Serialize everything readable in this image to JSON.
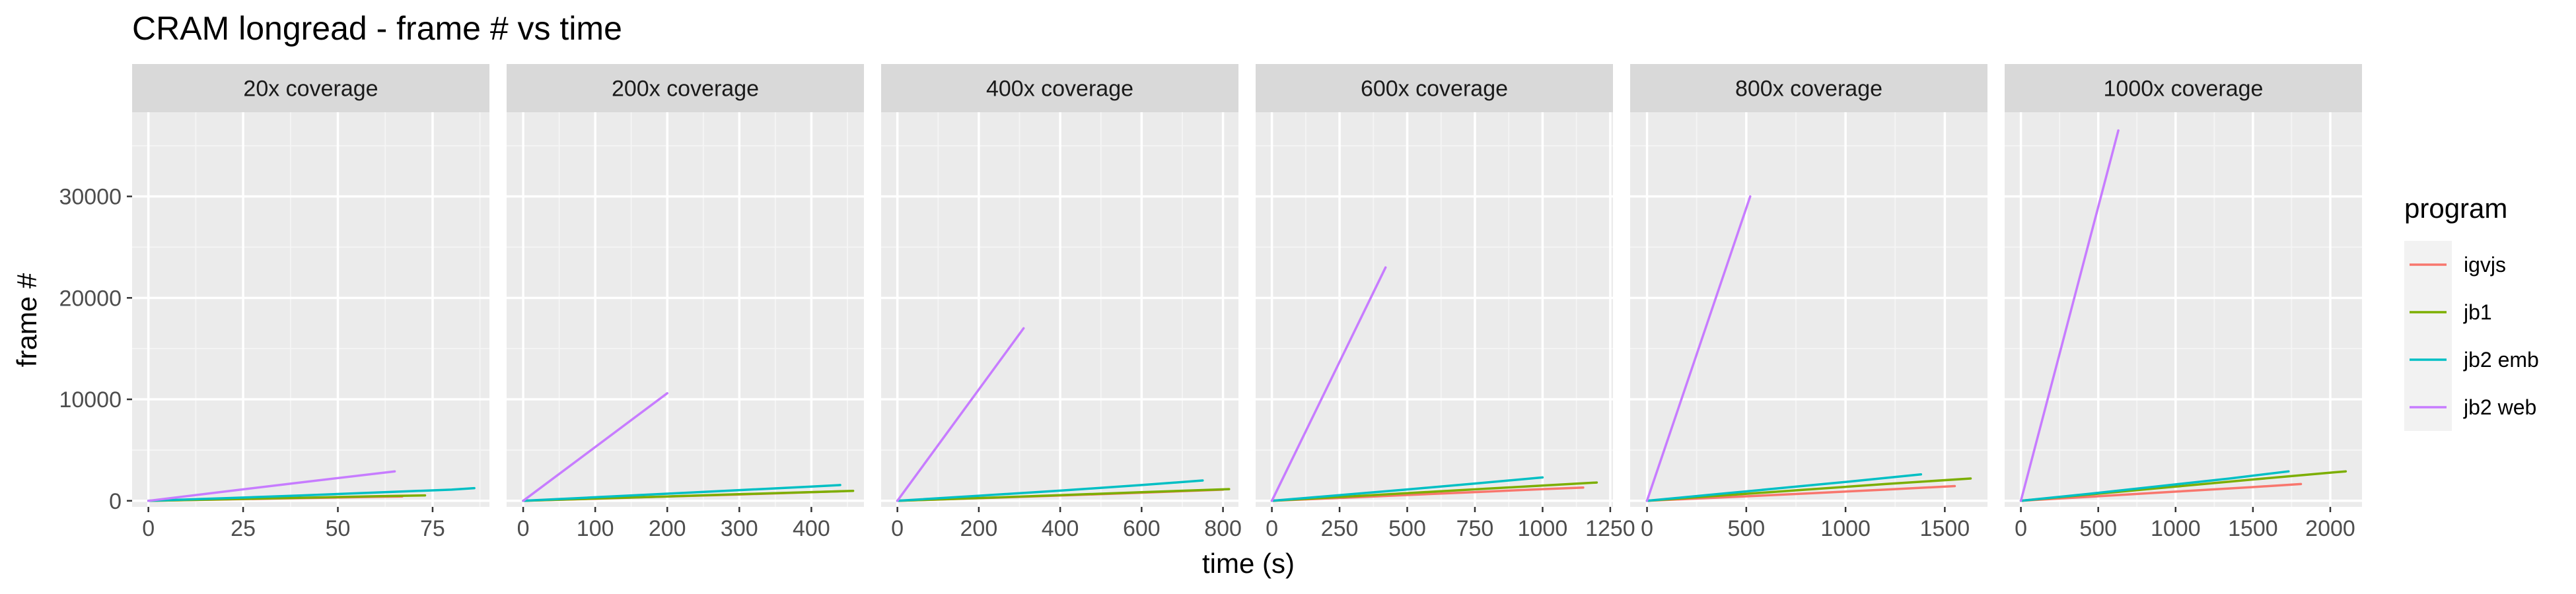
{
  "chart_data": {
    "type": "line",
    "title": "CRAM longread - frame # vs time",
    "xlabel": "time (s)",
    "ylabel": "frame #",
    "grid": true,
    "legend": {
      "title": "program",
      "position": "right",
      "entries": [
        "igvjs",
        "jb1",
        "jb2 emb",
        "jb2 web"
      ]
    },
    "colors": {
      "igvjs": "#F8766D",
      "jb1": "#7CAE00",
      "jb2 emb": "#00BFC4",
      "jb2 web": "#C77CFF"
    },
    "ylim": [
      -600,
      38300
    ],
    "yticks": [
      0,
      10000,
      20000,
      30000
    ],
    "ytick_labels": [
      "0",
      "10000",
      "20000",
      "30000"
    ],
    "panels": [
      {
        "label": "20x coverage",
        "xlim": [
          -4.3,
          90
        ],
        "xticks": [
          0,
          25,
          50,
          75
        ],
        "xtick_labels": [
          "0",
          "25",
          "50",
          "75"
        ],
        "series": [
          {
            "name": "igvjs",
            "x": [
              0,
              20,
              40,
              60,
              67
            ],
            "y": [
              0,
              130,
              260,
              390,
              430
            ]
          },
          {
            "name": "jb1",
            "x": [
              0,
              20,
              40,
              60,
              73
            ],
            "y": [
              0,
              150,
              300,
              450,
              530
            ]
          },
          {
            "name": "jb2 emb",
            "x": [
              0,
              20,
              40,
              60,
              80,
              86
            ],
            "y": [
              0,
              250,
              520,
              820,
              1100,
              1250
            ]
          },
          {
            "name": "jb2 web",
            "x": [
              0,
              20,
              40,
              65
            ],
            "y": [
              0,
              900,
              1800,
              2900
            ]
          }
        ]
      },
      {
        "label": "200x coverage",
        "xlim": [
          -23,
          473
        ],
        "xticks": [
          0,
          100,
          200,
          300,
          400
        ],
        "xtick_labels": [
          "0",
          "100",
          "200",
          "300",
          "400"
        ],
        "series": [
          {
            "name": "igvjs",
            "x": [
              0,
              100,
              200,
              300,
              400,
              445
            ],
            "y": [
              0,
              200,
              420,
              620,
              850,
              950
            ]
          },
          {
            "name": "jb1",
            "x": [
              0,
              100,
              200,
              300,
              400,
              458
            ],
            "y": [
              0,
              220,
              430,
              650,
              860,
              980
            ]
          },
          {
            "name": "jb2 emb",
            "x": [
              0,
              100,
              200,
              300,
              400,
              440
            ],
            "y": [
              0,
              350,
              700,
              1050,
              1400,
              1550
            ]
          },
          {
            "name": "jb2 web",
            "x": [
              0,
              200
            ],
            "y": [
              0,
              10600
            ]
          }
        ]
      },
      {
        "label": "400x coverage",
        "xlim": [
          -40,
          838
        ],
        "xticks": [
          0,
          200,
          400,
          600,
          800
        ],
        "xtick_labels": [
          "0",
          "200",
          "400",
          "600",
          "800"
        ],
        "series": [
          {
            "name": "igvjs",
            "x": [
              0,
              200,
              400,
              600,
              800
            ],
            "y": [
              0,
              250,
              520,
              800,
              1100
            ]
          },
          {
            "name": "jb1",
            "x": [
              0,
              200,
              400,
              600,
              815
            ],
            "y": [
              0,
              270,
              550,
              850,
              1150
            ]
          },
          {
            "name": "jb2 emb",
            "x": [
              0,
              200,
              400,
              600,
              750
            ],
            "y": [
              0,
              500,
              1000,
              1550,
              2000
            ]
          },
          {
            "name": "jb2 web",
            "x": [
              0,
              310
            ],
            "y": [
              0,
              17000
            ]
          }
        ]
      },
      {
        "label": "600x coverage",
        "xlim": [
          -60,
          1260
        ],
        "xticks": [
          0,
          250,
          500,
          750,
          1000,
          1250
        ],
        "xtick_labels": [
          "0",
          "250",
          "500",
          "750",
          "1000",
          "1250"
        ],
        "series": [
          {
            "name": "igvjs",
            "x": [
              0,
              250,
              500,
              750,
              1000,
              1150
            ],
            "y": [
              0,
              280,
              570,
              860,
              1150,
              1300
            ]
          },
          {
            "name": "jb1",
            "x": [
              0,
              300,
              600,
              900,
              1200
            ],
            "y": [
              0,
              450,
              900,
              1350,
              1800
            ]
          },
          {
            "name": "jb2 emb",
            "x": [
              0,
              250,
              500,
              750,
              1000
            ],
            "y": [
              0,
              560,
              1120,
              1700,
              2300
            ]
          },
          {
            "name": "jb2 web",
            "x": [
              0,
              420
            ],
            "y": [
              0,
              23000
            ]
          }
        ]
      },
      {
        "label": "800x coverage",
        "xlim": [
          -85,
          1715
        ],
        "xticks": [
          0,
          500,
          1000,
          1500
        ],
        "xtick_labels": [
          "0",
          "500",
          "1000",
          "1500"
        ],
        "series": [
          {
            "name": "igvjs",
            "x": [
              0,
              400,
              800,
              1200,
              1550
            ],
            "y": [
              0,
              350,
              720,
              1100,
              1450
            ]
          },
          {
            "name": "jb1",
            "x": [
              0,
              400,
              800,
              1200,
              1630
            ],
            "y": [
              0,
              550,
              1100,
              1650,
              2200
            ]
          },
          {
            "name": "jb2 emb",
            "x": [
              0,
              350,
              700,
              1050,
              1380
            ],
            "y": [
              0,
              650,
              1300,
              1950,
              2600
            ]
          },
          {
            "name": "jb2 web",
            "x": [
              0,
              520
            ],
            "y": [
              0,
              30000
            ]
          }
        ]
      },
      {
        "label": "1000x coverage",
        "xlim": [
          -105,
          2205
        ],
        "xticks": [
          0,
          500,
          1000,
          1500,
          2000
        ],
        "xtick_labels": [
          "0",
          "500",
          "1000",
          "1500",
          "2000"
        ],
        "series": [
          {
            "name": "igvjs",
            "x": [
              0,
              500,
              1000,
              1500,
              1810
            ],
            "y": [
              0,
              450,
              900,
              1350,
              1650
            ]
          },
          {
            "name": "jb1",
            "x": [
              0,
              500,
              1000,
              1500,
              2020,
              2100
            ],
            "y": [
              0,
              700,
              1400,
              2100,
              2800,
              2900
            ]
          },
          {
            "name": "jb2 emb",
            "x": [
              0,
              450,
              900,
              1350,
              1730
            ],
            "y": [
              0,
              700,
              1450,
              2200,
              2900
            ]
          },
          {
            "name": "jb2 web",
            "x": [
              0,
              630
            ],
            "y": [
              0,
              36500
            ]
          }
        ]
      }
    ]
  }
}
